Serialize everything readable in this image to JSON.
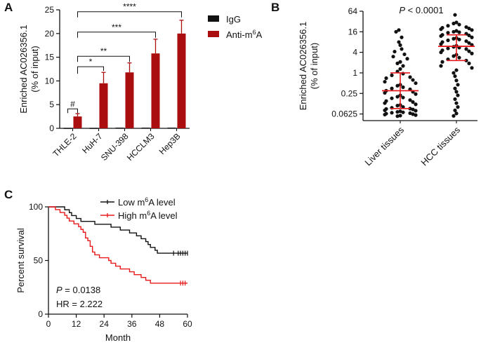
{
  "chart_data": [
    {
      "panel": "A",
      "type": "bar",
      "ylabel_line1": "Enriched AC026356.1",
      "ylabel_line2": "(% of input)",
      "ylim": [
        0,
        25
      ],
      "yticks": [
        0,
        5,
        10,
        15,
        20,
        25
      ],
      "yticks_labels": [
        "0",
        "5",
        "10",
        "15",
        "20",
        "25"
      ],
      "categories": [
        "THLE-2",
        "HuH-7",
        "SNU-398",
        "HCCLM3",
        "Hep3B"
      ],
      "series": [
        {
          "name": "IgG",
          "color": "#111111",
          "values": [
            0.1,
            0.1,
            0.15,
            0.15,
            0.15
          ],
          "errors": [
            0.05,
            0.05,
            0.05,
            0.05,
            0.05
          ]
        },
        {
          "name": "Anti-m6A",
          "color": "#aa0e0e",
          "values": [
            2.5,
            9.5,
            11.8,
            15.8,
            20.0
          ],
          "errors": [
            0.6,
            2.3,
            2.0,
            3.0,
            2.8
          ]
        }
      ],
      "legend": [
        {
          "text": "IgG",
          "color": "#111111"
        },
        {
          "text": "Anti-m",
          "sup": "6",
          "tail": "A",
          "color": "#aa0e0e"
        }
      ],
      "brackets": [
        {
          "label": "#",
          "from": 0,
          "to": 1,
          "from_series": 0,
          "to_series": 1,
          "y": 4.1
        },
        {
          "label": "*",
          "from": 1,
          "to": 1,
          "from_series": 1,
          "to_series": 1,
          "y": 13.0,
          "cat_from": 0
        },
        {
          "label": "**",
          "cat_from": 0,
          "cat_to": 2,
          "y": 15.2
        },
        {
          "label": "***",
          "cat_from": 0,
          "cat_to": 3,
          "y": 20.3
        },
        {
          "label": "****",
          "cat_from": 0,
          "cat_to": 4,
          "y": 24.6
        }
      ]
    },
    {
      "panel": "B",
      "type": "scatter",
      "ylabel_line1": "Enriched AC026356.1",
      "ylabel_line2": "(% of input)",
      "yscale": "log2",
      "ylim": [
        0.04,
        64
      ],
      "yticks": [
        0.0625,
        0.25,
        1,
        4,
        16,
        64
      ],
      "yticks_labels": [
        "0.0625",
        "0.25",
        "1",
        "4",
        "16",
        "64"
      ],
      "categories": [
        "Liver tissues",
        "HCC tissues"
      ],
      "annotation_p": "P",
      "annotation_rest": " < 0.0001",
      "groups": [
        {
          "name": "Liver tissues",
          "median": 0.3,
          "q1": 0.09,
          "q3": 1.0,
          "values": [
            18,
            16,
            11,
            8,
            6.5,
            5,
            4.2,
            3.5,
            3,
            2.6,
            2.1,
            1.9,
            1.6,
            1.3,
            1.1,
            0.95,
            0.85,
            0.75,
            0.7,
            0.62,
            0.55,
            0.5,
            0.45,
            0.42,
            0.38,
            0.35,
            0.33,
            0.3,
            0.28,
            0.26,
            0.24,
            0.22,
            0.2,
            0.19,
            0.18,
            0.16,
            0.15,
            0.14,
            0.13,
            0.12,
            0.115,
            0.11,
            0.1,
            0.095,
            0.09,
            0.088,
            0.085,
            0.08,
            0.078,
            0.075,
            0.072,
            0.07,
            0.068,
            0.066,
            0.064,
            0.062,
            0.06,
            0.058,
            0.056,
            0.054
          ]
        },
        {
          "name": "HCC tissues",
          "median": 6.0,
          "q1": 2.3,
          "q3": 13.0,
          "values": [
            50,
            30,
            28,
            26,
            24,
            22,
            21,
            20,
            19,
            18,
            17,
            16,
            15.5,
            15,
            14,
            13,
            12.5,
            12,
            11,
            10.5,
            10,
            9.5,
            9,
            8.5,
            8,
            7.5,
            7,
            6.6,
            6.2,
            5.8,
            5.5,
            5.2,
            5,
            4.6,
            4.3,
            4,
            3.7,
            3.4,
            3.1,
            2.8,
            2.5,
            2.3,
            2.1,
            1.9,
            1.6,
            1.4,
            1.2,
            1,
            0.8,
            0.6,
            0.45,
            0.35,
            0.28,
            0.22,
            0.17,
            0.13,
            0.1,
            0.08,
            0.065,
            0.055
          ]
        }
      ]
    },
    {
      "panel": "C",
      "type": "line",
      "subtype": "kaplan-meier",
      "xlabel": "Month",
      "ylabel": "Percent survival",
      "xlim": [
        0,
        60
      ],
      "ylim": [
        0,
        100
      ],
      "xticks": [
        0,
        12,
        24,
        36,
        48,
        60
      ],
      "xticks_labels": [
        "0",
        "12",
        "24",
        "36",
        "48",
        "60"
      ],
      "yticks": [
        0,
        50,
        100
      ],
      "yticks_labels": [
        "0",
        "50",
        "100"
      ],
      "annotation_p": "P",
      "annotation_p_rest": " = 0.0138",
      "annotation_hr": "HR = 2.222",
      "legend": [
        {
          "text": "Low m",
          "sup": "6",
          "tail": "A level",
          "color": "#111111"
        },
        {
          "text": "High m",
          "sup": "6",
          "tail": "A level",
          "color": "#e8191b"
        }
      ],
      "series": [
        {
          "name": "Low m6A level",
          "color": "#111111",
          "steps": [
            [
              0,
              100
            ],
            [
              5,
              100
            ],
            [
              7,
              97.3
            ],
            [
              9,
              94.6
            ],
            [
              10,
              91.9
            ],
            [
              12,
              89.2
            ],
            [
              14,
              86.5
            ],
            [
              20,
              83.8
            ],
            [
              27,
              81.1
            ],
            [
              31,
              78.4
            ],
            [
              35,
              75.7
            ],
            [
              38,
              73
            ],
            [
              40,
              70.3
            ],
            [
              42,
              67.6
            ],
            [
              43,
              64.9
            ],
            [
              44,
              62.2
            ],
            [
              46,
              59.5
            ],
            [
              47,
              56.8
            ],
            [
              60,
              56.8
            ]
          ],
          "censored": [
            54,
            56,
            57,
            58,
            59,
            60
          ]
        },
        {
          "name": "High m6A level",
          "color": "#e8191b",
          "steps": [
            [
              0,
              100
            ],
            [
              3,
              97.4
            ],
            [
              5,
              94.7
            ],
            [
              7,
              92.1
            ],
            [
              8,
              89.5
            ],
            [
              9,
              86.8
            ],
            [
              11,
              84.2
            ],
            [
              13,
              81.6
            ],
            [
              14,
              79
            ],
            [
              15,
              76.3
            ],
            [
              16,
              71
            ],
            [
              17,
              68.4
            ],
            [
              18,
              63.2
            ],
            [
              19,
              57.9
            ],
            [
              20,
              55.3
            ],
            [
              22,
              52.6
            ],
            [
              26,
              50
            ],
            [
              27,
              47.4
            ],
            [
              29,
              44.7
            ],
            [
              31,
              42.1
            ],
            [
              35,
              39.5
            ],
            [
              37,
              36.8
            ],
            [
              40,
              34.2
            ],
            [
              42,
              31.6
            ],
            [
              44,
              28.9
            ],
            [
              60,
              28.9
            ]
          ],
          "censored": [
            57,
            58,
            59
          ]
        }
      ]
    }
  ]
}
